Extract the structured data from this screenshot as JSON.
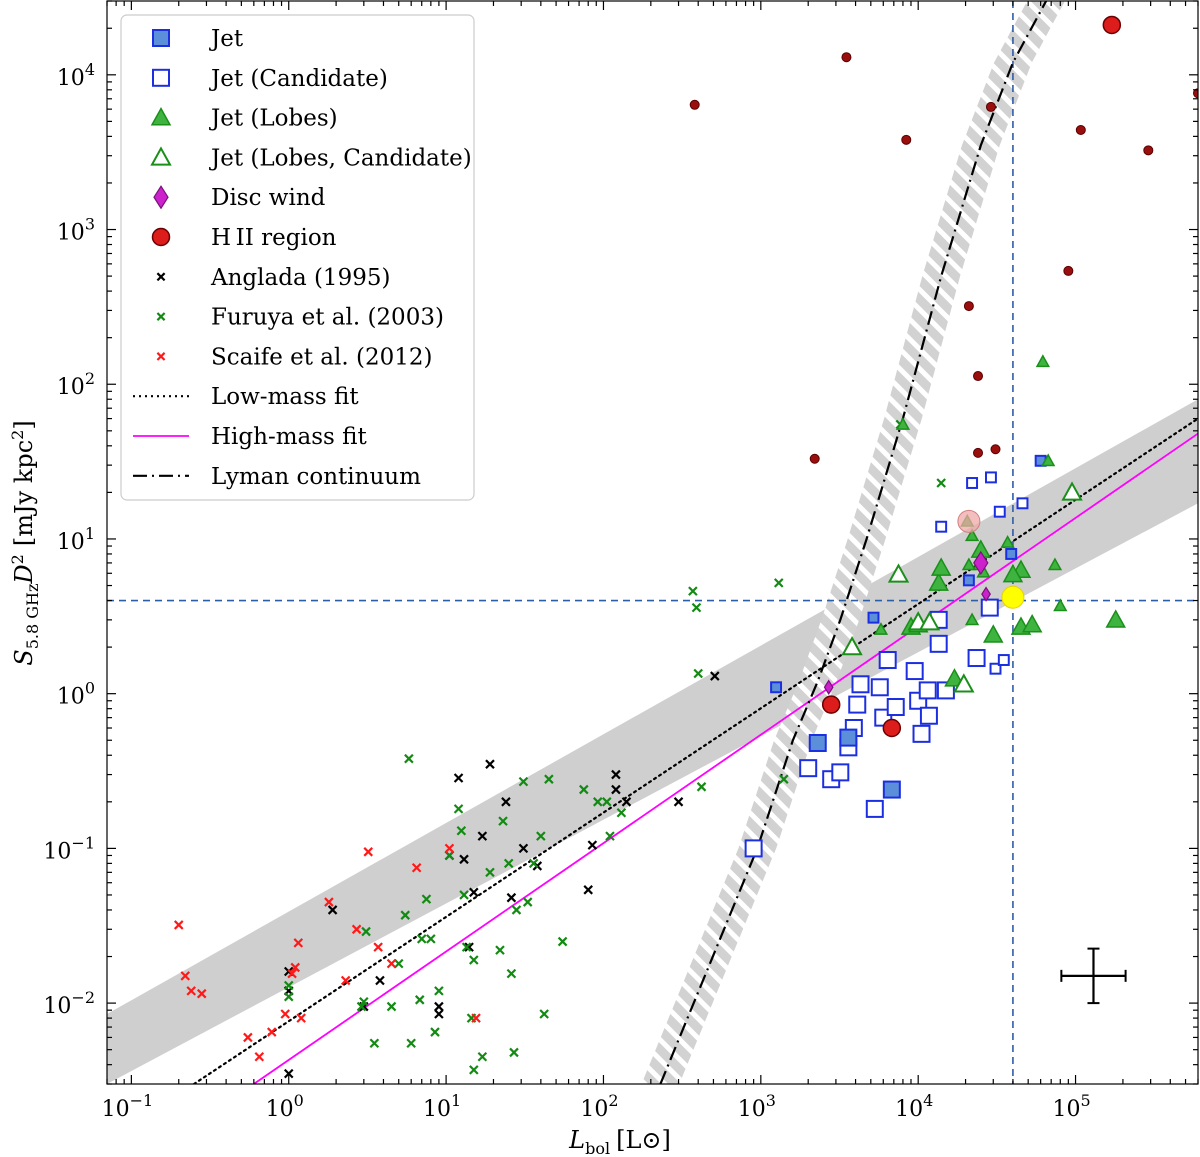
{
  "chart_data": {
    "type": "scatter",
    "xscale": "log",
    "yscale": "log",
    "xlim": [
      0.07,
      600000
    ],
    "ylim": [
      0.003,
      30000
    ],
    "xlabel": {
      "main": "L",
      "sub": "bol",
      "unit": "[L⊙]"
    },
    "ylabel": {
      "main": "S",
      "sub": "5.8 GHz",
      "tail": "D",
      "sup": "2",
      "unit": "[mJy kpc",
      "unit_sup": "2",
      "unit_close": "]"
    },
    "x_ticks": [
      {
        "value": 0.1,
        "base": "10",
        "exp": "−1"
      },
      {
        "value": 1,
        "base": "10",
        "exp": "0"
      },
      {
        "value": 10,
        "base": "10",
        "exp": "1"
      },
      {
        "value": 100,
        "base": "10",
        "exp": "2"
      },
      {
        "value": 1000,
        "base": "10",
        "exp": "3"
      },
      {
        "value": 10000,
        "base": "10",
        "exp": "4"
      },
      {
        "value": 100000,
        "base": "10",
        "exp": "5"
      }
    ],
    "y_ticks": [
      {
        "value": 0.01,
        "base": "10",
        "exp": "−2"
      },
      {
        "value": 0.1,
        "base": "10",
        "exp": "−1"
      },
      {
        "value": 1,
        "base": "10",
        "exp": "0"
      },
      {
        "value": 10,
        "base": "10",
        "exp": "1"
      },
      {
        "value": 100,
        "base": "10",
        "exp": "2"
      },
      {
        "value": 1000,
        "base": "10",
        "exp": "3"
      },
      {
        "value": 10000,
        "base": "10",
        "exp": "4"
      }
    ],
    "colors": {
      "jet_blue": "#1c2fe0",
      "jet_fill": "#5b8fd9",
      "lobes_green": "#1a8f1a",
      "lobes_fill": "#3fb33f",
      "disc_wind": "#cc22cc",
      "hii_red": "#dd1c1c",
      "hii_dark": "#9b0e0e",
      "highmass_fit": "#ff00ff",
      "threshold": "#2b5ea8",
      "shade": "#cfcfcf"
    },
    "legend": [
      {
        "label": "Jet",
        "marker": "square-filled"
      },
      {
        "label": "Jet (Candidate)",
        "marker": "square-open"
      },
      {
        "label": "Jet (Lobes)",
        "marker": "triangle-filled"
      },
      {
        "label": "Jet (Lobes, Candidate)",
        "marker": "triangle-open"
      },
      {
        "label": "Disc wind",
        "marker": "diamond"
      },
      {
        "label": "HII region",
        "display": "H II region",
        "marker": "circle-red"
      },
      {
        "label": "Anglada (1995)",
        "marker": "x-black"
      },
      {
        "label": "Furuya et al. (2003)",
        "marker": "x-green"
      },
      {
        "label": "Scaife et al. (2012)",
        "marker": "x-red"
      },
      {
        "label": "Low-mass fit",
        "marker": "line-dotted"
      },
      {
        "label": "High-mass fit",
        "marker": "line-magenta"
      },
      {
        "label": "Lyman continuum",
        "marker": "line-dashdot"
      }
    ],
    "fits": {
      "low_mass": {
        "points": [
          [
            0.25,
            0.003
          ],
          [
            600000,
            60
          ]
        ]
      },
      "high_mass": {
        "points": [
          [
            0.6,
            0.003
          ],
          [
            600000,
            48
          ]
        ]
      },
      "shade_low": [
        [
          0.07,
          0.003
        ],
        [
          600000,
          17
        ]
      ],
      "shade_high": [
        [
          0.07,
          0.0085
        ],
        [
          600000,
          80
        ]
      ],
      "lyman": {
        "points": [
          [
            230,
            0.003
          ],
          [
            950,
            0.1
          ],
          [
            1600,
            0.5
          ],
          [
            2300,
            1.2
          ],
          [
            3200,
            3
          ],
          [
            4700,
            10
          ],
          [
            8000,
            60
          ],
          [
            14000,
            500
          ],
          [
            25000,
            3500
          ],
          [
            40000,
            12000
          ],
          [
            65000,
            30000
          ]
        ]
      },
      "lyman_band_halfwidth_dex": 0.12
    },
    "thresholds": {
      "x": 40000,
      "y": 4
    },
    "series": [
      {
        "name": "Jet",
        "marker": "square-filled",
        "points": [
          [
            2300,
            0.48
          ],
          [
            3600,
            0.52
          ],
          [
            6800,
            0.24
          ],
          [
            5200,
            3.1
          ],
          [
            21000,
            5.4
          ],
          [
            39000,
            8.0
          ],
          [
            60000,
            32
          ],
          [
            1250,
            1.1
          ]
        ]
      },
      {
        "name": "Jet (Candidate)",
        "marker": "square-open",
        "points": [
          [
            900,
            0.1
          ],
          [
            2000,
            0.33
          ],
          [
            2800,
            0.28
          ],
          [
            3200,
            0.31
          ],
          [
            3600,
            0.45
          ],
          [
            3900,
            0.6
          ],
          [
            4100,
            0.85
          ],
          [
            4300,
            1.15
          ],
          [
            5300,
            0.18
          ],
          [
            5700,
            1.1
          ],
          [
            6000,
            0.7
          ],
          [
            6400,
            1.65
          ],
          [
            7200,
            0.82
          ],
          [
            9500,
            1.4
          ],
          [
            10500,
            0.55
          ],
          [
            10000,
            0.9
          ],
          [
            11500,
            1.05
          ],
          [
            11700,
            0.72
          ],
          [
            13500,
            2.1
          ],
          [
            13500,
            3.0
          ],
          [
            15000,
            1.05
          ],
          [
            23500,
            1.7
          ],
          [
            28500,
            3.6
          ],
          [
            31000,
            1.45
          ],
          [
            35000,
            1.65
          ],
          [
            14000,
            12
          ],
          [
            22000,
            23
          ],
          [
            29000,
            25
          ],
          [
            46000,
            17
          ],
          [
            33000,
            15
          ]
        ]
      },
      {
        "name": "Jet (Lobes)",
        "marker": "triangle-filled",
        "points": [
          [
            17000,
            1.25
          ],
          [
            21000,
            6.8
          ],
          [
            25000,
            8.5
          ],
          [
            30000,
            2.4
          ],
          [
            45000,
            2.7
          ],
          [
            45000,
            6.3
          ],
          [
            53000,
            2.8
          ],
          [
            62000,
            140
          ],
          [
            67000,
            32
          ],
          [
            74000,
            6.8
          ],
          [
            80000,
            3.7
          ],
          [
            180000,
            3.0
          ],
          [
            8000,
            55
          ],
          [
            13500,
            5.2
          ],
          [
            5800,
            2.6
          ],
          [
            9000,
            2.7
          ],
          [
            10000,
            2.8
          ],
          [
            14000,
            6.5
          ],
          [
            22000,
            3.0
          ],
          [
            22000,
            10.5
          ],
          [
            26000,
            6.1
          ],
          [
            37000,
            9.5
          ],
          [
            40000,
            5.9
          ],
          [
            20500,
            13
          ],
          [
            24500,
            6.8
          ]
        ]
      },
      {
        "name": "Jet (Lobes, Candidate)",
        "marker": "triangle-open",
        "points": [
          [
            3800,
            2.0
          ],
          [
            7500,
            5.9
          ],
          [
            10000,
            2.9
          ],
          [
            11800,
            2.9
          ],
          [
            19500,
            1.15
          ],
          [
            95000,
            20
          ]
        ]
      },
      {
        "name": "Disc wind",
        "marker": "diamond",
        "points": [
          [
            2700,
            1.1
          ],
          [
            25000,
            7.0
          ],
          [
            27000,
            4.4
          ]
        ]
      },
      {
        "name": "HII region",
        "marker": "circle-red",
        "points": [
          [
            2800,
            0.85
          ],
          [
            6800,
            0.6
          ],
          [
            170000,
            21000
          ],
          [
            21000,
            13
          ]
        ]
      },
      {
        "name": "HII region (small)",
        "marker": "circle-dark",
        "points": [
          [
            380,
            6400
          ],
          [
            2200,
            33
          ],
          [
            3500,
            13000
          ],
          [
            8400,
            3800
          ],
          [
            21000,
            320
          ],
          [
            24000,
            113
          ],
          [
            24000,
            36
          ],
          [
            29000,
            6200
          ],
          [
            31000,
            38
          ],
          [
            90000,
            540
          ],
          [
            108000,
            4400
          ],
          [
            290000,
            3250
          ],
          [
            600000,
            7600
          ]
        ]
      },
      {
        "name": "Highlighted source",
        "marker": "circle-yellow",
        "points": [
          [
            40000,
            4.2
          ]
        ]
      },
      {
        "name": "Anglada (1995)",
        "marker": "x-black",
        "points": [
          [
            1.0,
            0.016
          ],
          [
            1.0,
            0.012
          ],
          [
            1.0,
            0.0035
          ],
          [
            1.9,
            0.04
          ],
          [
            3.0,
            0.0095
          ],
          [
            3.8,
            0.014
          ],
          [
            9.0,
            0.0095
          ],
          [
            9.0,
            0.0085
          ],
          [
            10.5,
            0.09
          ],
          [
            12,
            0.285
          ],
          [
            13,
            0.085
          ],
          [
            14,
            0.023
          ],
          [
            15,
            0.052
          ],
          [
            17,
            0.12
          ],
          [
            19,
            0.35
          ],
          [
            24,
            0.2
          ],
          [
            26,
            0.048
          ],
          [
            31,
            0.1
          ],
          [
            38,
            0.077
          ],
          [
            80,
            0.054
          ],
          [
            85,
            0.105
          ],
          [
            120,
            0.24
          ],
          [
            120,
            0.3
          ],
          [
            140,
            0.2
          ],
          [
            300,
            0.2
          ],
          [
            510,
            1.3
          ]
        ]
      },
      {
        "name": "Furuya et al. (2003)",
        "marker": "x-green",
        "points": [
          [
            1.0,
            0.011
          ],
          [
            1.0,
            0.013
          ],
          [
            2.9,
            0.0095
          ],
          [
            3.0,
            0.0102
          ],
          [
            3.1,
            0.029
          ],
          [
            3.5,
            0.0055
          ],
          [
            4.5,
            0.0095
          ],
          [
            5,
            0.018
          ],
          [
            5.5,
            0.037
          ],
          [
            5.8,
            0.38
          ],
          [
            6,
            0.0055
          ],
          [
            6.8,
            0.0105
          ],
          [
            7,
            0.026
          ],
          [
            7.5,
            0.047
          ],
          [
            8,
            0.026
          ],
          [
            8.5,
            0.0065
          ],
          [
            9,
            0.012
          ],
          [
            10.5,
            0.09
          ],
          [
            12,
            0.18
          ],
          [
            12.5,
            0.13
          ],
          [
            13,
            0.05
          ],
          [
            13.5,
            0.023
          ],
          [
            14.5,
            0.008
          ],
          [
            15,
            0.019
          ],
          [
            15,
            0.0037
          ],
          [
            17,
            0.0045
          ],
          [
            19,
            0.07
          ],
          [
            22,
            0.022
          ],
          [
            23,
            0.15
          ],
          [
            25,
            0.08
          ],
          [
            26,
            0.0155
          ],
          [
            27,
            0.0048
          ],
          [
            28,
            0.04
          ],
          [
            31,
            0.27
          ],
          [
            33,
            0.045
          ],
          [
            36,
            0.08
          ],
          [
            40,
            0.12
          ],
          [
            42,
            0.0085
          ],
          [
            45,
            0.28
          ],
          [
            55,
            0.025
          ],
          [
            75,
            0.24
          ],
          [
            92,
            0.2
          ],
          [
            105,
            0.2
          ],
          [
            110,
            0.12
          ],
          [
            130,
            0.17
          ],
          [
            370,
            4.6
          ],
          [
            390,
            3.6
          ],
          [
            400,
            1.35
          ],
          [
            420,
            0.25
          ],
          [
            1300,
            5.2
          ],
          [
            1400,
            0.28
          ],
          [
            7700,
            55
          ],
          [
            14000,
            23
          ]
        ]
      },
      {
        "name": "Scaife et al. (2012)",
        "marker": "x-red",
        "points": [
          [
            0.2,
            0.032
          ],
          [
            0.22,
            0.015
          ],
          [
            0.24,
            0.012
          ],
          [
            0.28,
            0.0115
          ],
          [
            0.55,
            0.006
          ],
          [
            0.65,
            0.0045
          ],
          [
            0.78,
            0.0065
          ],
          [
            0.95,
            0.0085
          ],
          [
            1.05,
            0.0155
          ],
          [
            1.1,
            0.017
          ],
          [
            1.15,
            0.0245
          ],
          [
            1.2,
            0.008
          ],
          [
            1.8,
            0.045
          ],
          [
            2.3,
            0.014
          ],
          [
            2.7,
            0.03
          ],
          [
            3.2,
            0.095
          ],
          [
            3.7,
            0.023
          ],
          [
            4.5,
            0.018
          ],
          [
            6.5,
            0.075
          ],
          [
            10.5,
            0.1
          ],
          [
            15.5,
            0.008
          ]
        ]
      }
    ],
    "error_cross": {
      "x": 130000,
      "y": 0.015,
      "x_factor": 1.6,
      "y_factor": 1.5
    }
  }
}
